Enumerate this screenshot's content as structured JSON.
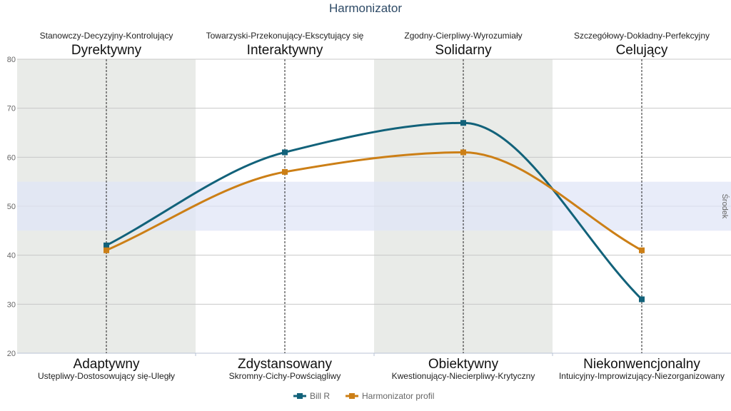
{
  "chart_data": {
    "type": "line",
    "title": "Harmonizator",
    "ylim": [
      20,
      80
    ],
    "yticks": [
      20,
      30,
      40,
      50,
      60,
      70,
      80
    ],
    "grid": true,
    "legend_position": "bottom-center",
    "top_labels": [
      {
        "sub": "Stanowczy-Decyzyjny-Kontrolujący",
        "main": "Dyrektywny"
      },
      {
        "sub": "Towarzyski-Przekonujący-Ekscytujący się",
        "main": "Interaktywny"
      },
      {
        "sub": "Zgodny-Cierpliwy-Wyrozumiały",
        "main": "Solidarny"
      },
      {
        "sub": "Szczegółowy-Dokładny-Perfekcyjny",
        "main": "Celujący"
      }
    ],
    "bottom_labels": [
      {
        "main": "Adaptywny",
        "sub": "Ustępliwy-Dostosowujący się-Uległy"
      },
      {
        "main": "Zdystansowany",
        "sub": "Skromny-Cichy-Powściągliwy"
      },
      {
        "main": "Obiektywny",
        "sub": "Kwestionujący-Niecierpliwy-Krytyczny"
      },
      {
        "main": "Niekonwencjonalny",
        "sub": "Intuicyjny-Improwizujący-Niezorganizowany"
      }
    ],
    "plot_band": {
      "from": 45,
      "to": 55,
      "label": "Środek"
    },
    "series": [
      {
        "name": "Bill R",
        "color": "#12627a",
        "values": [
          42,
          61,
          67,
          31
        ]
      },
      {
        "name": "Harmonizator profil",
        "color": "#cc7f16",
        "values": [
          41,
          57,
          61,
          41
        ]
      }
    ]
  }
}
